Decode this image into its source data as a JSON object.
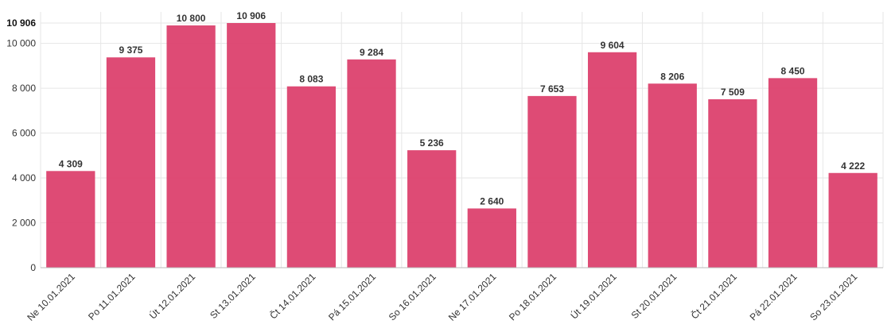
{
  "chart_data": {
    "type": "bar",
    "categories": [
      "Ne 10.01.2021",
      "Po 11.01.2021",
      "Út 12.01.2021",
      "St 13.01.2021",
      "Čt 14.01.2021",
      "Pá 15.01.2021",
      "So 16.01.2021",
      "Ne 17.01.2021",
      "Po 18.01.2021",
      "Út 19.01.2021",
      "St 20.01.2021",
      "Čt 21.01.2021",
      "Pá 22.01.2021",
      "So 23.01.2021"
    ],
    "values": [
      4309,
      9375,
      10800,
      10906,
      8083,
      9284,
      5236,
      2640,
      7653,
      9604,
      8206,
      7509,
      8450,
      4222
    ],
    "value_labels": [
      "4 309",
      "9 375",
      "10 800",
      "10 906",
      "8 083",
      "9 284",
      "5 236",
      "2 640",
      "7 653",
      "9 604",
      "8 206",
      "7 509",
      "8 450",
      "4 222"
    ],
    "yticks": [
      0,
      2000,
      4000,
      6000,
      8000,
      10000
    ],
    "ytick_labels": [
      "0",
      "2 000",
      "4 000",
      "6 000",
      "8 000",
      "10 000"
    ],
    "ymax_label": "10 906",
    "ylim": [
      0,
      10906
    ],
    "grid": true,
    "bar_color": "#dc3d6a"
  }
}
